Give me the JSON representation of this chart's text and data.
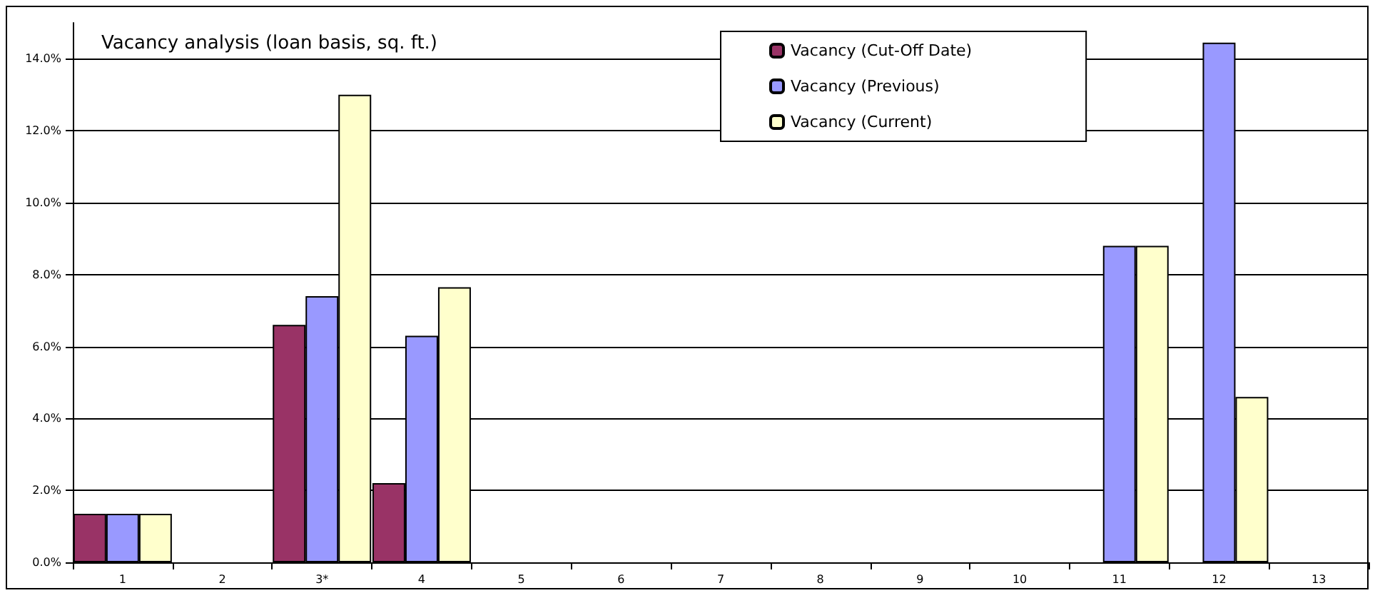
{
  "chart_data": {
    "type": "bar",
    "title": "Vacancy analysis (loan basis, sq. ft.)",
    "categories": [
      "1",
      "2",
      "3*",
      "4",
      "5",
      "6",
      "7",
      "8",
      "9",
      "10",
      "11",
      "12",
      "13"
    ],
    "series": [
      {
        "name": "Vacancy (Cut-Off Date)",
        "color": "#993366",
        "values": [
          1.35,
          null,
          6.6,
          2.2,
          null,
          null,
          null,
          null,
          null,
          null,
          null,
          null,
          null
        ]
      },
      {
        "name": "Vacancy (Previous)",
        "color": "#9999ff",
        "values": [
          1.35,
          null,
          7.4,
          6.3,
          null,
          null,
          null,
          null,
          null,
          null,
          8.8,
          14.45,
          null
        ]
      },
      {
        "name": "Vacancy (Current)",
        "color": "#ffffcc",
        "values": [
          1.35,
          null,
          13.0,
          7.65,
          null,
          null,
          null,
          null,
          null,
          null,
          8.8,
          4.6,
          null
        ]
      }
    ],
    "ylim": [
      0,
      15
    ],
    "yticks": [
      {
        "value": 0,
        "label": "0.0%"
      },
      {
        "value": 2,
        "label": "2.0%"
      },
      {
        "value": 4,
        "label": "4.0%"
      },
      {
        "value": 6,
        "label": "6.0%"
      },
      {
        "value": 8,
        "label": "8.0%"
      },
      {
        "value": 10,
        "label": "10.0%"
      },
      {
        "value": 12,
        "label": "12.0%"
      },
      {
        "value": 14,
        "label": "14.0%"
      }
    ],
    "grid": "y",
    "legend": "top right"
  }
}
